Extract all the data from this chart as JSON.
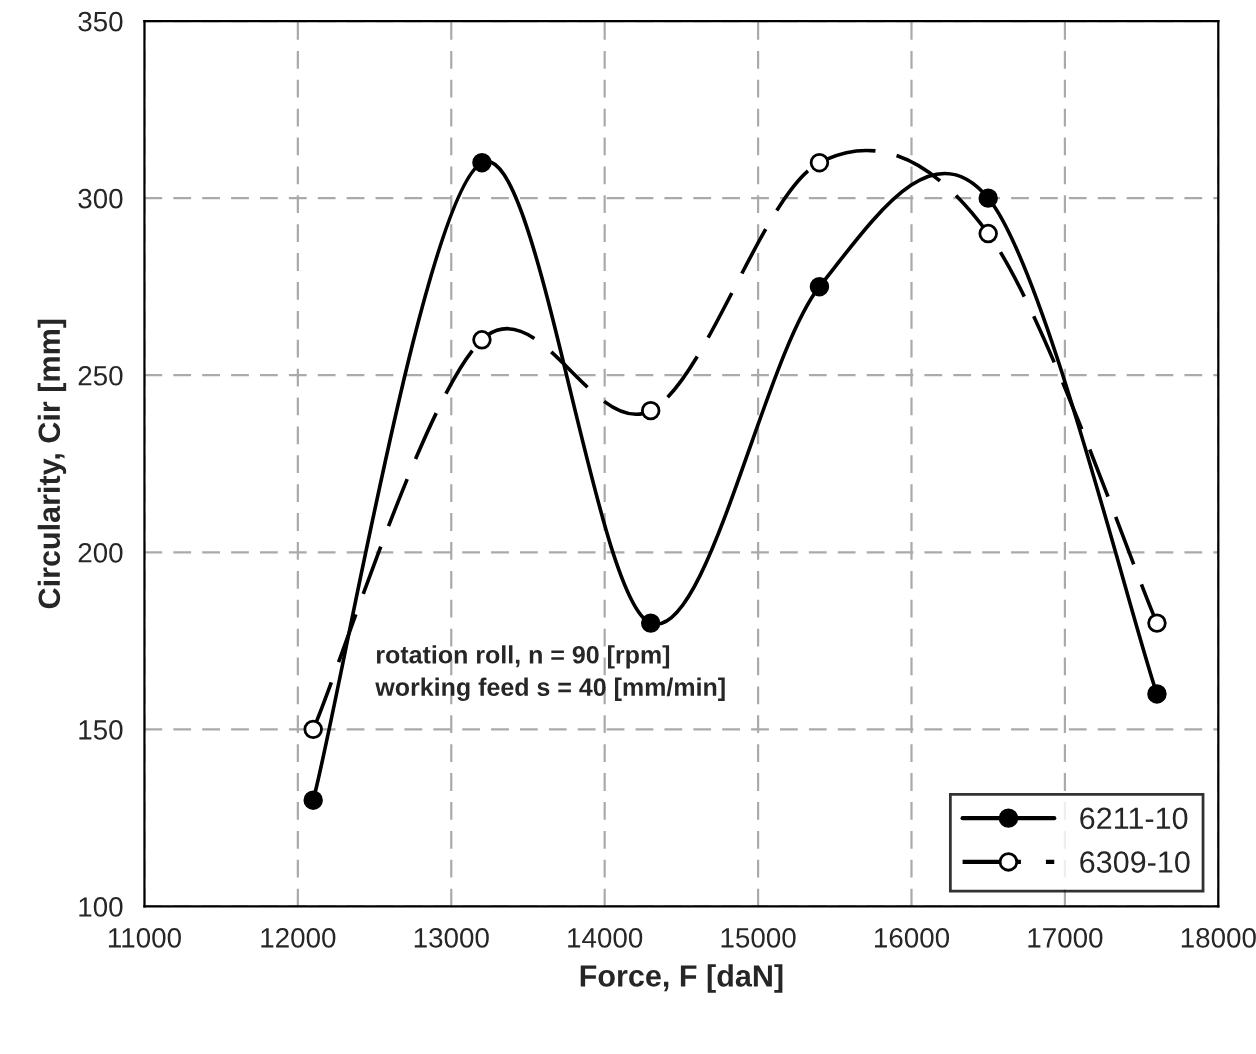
{
  "chart_data": {
    "type": "line",
    "xlabel": "Force, F [daN]",
    "ylabel": "Circularity, Cir [mm]",
    "x": [
      12100,
      13200,
      14300,
      15400,
      16500,
      17600
    ],
    "series": [
      {
        "name": "6211-10",
        "color": "#000000",
        "values": [
          130,
          310,
          180,
          275,
          300,
          160
        ],
        "line_style": "solid"
      },
      {
        "name": "6309-10",
        "color": "#000000",
        "values": [
          150,
          260,
          240,
          310,
          290,
          180
        ],
        "line_style": "dashed"
      }
    ],
    "xlim": [
      11000,
      18000
    ],
    "xticks": [
      11000,
      12000,
      13000,
      14000,
      15000,
      16000,
      17000,
      18000
    ],
    "ylim": [
      100,
      350
    ],
    "yticks": [
      100,
      150,
      200,
      250,
      300,
      350
    ],
    "grid": true,
    "legend": "bottom right",
    "marker": "circle",
    "annotations": [
      "rotation roll, n = 90 [rpm]\nworking feed s = 40 [mm/min]"
    ]
  }
}
